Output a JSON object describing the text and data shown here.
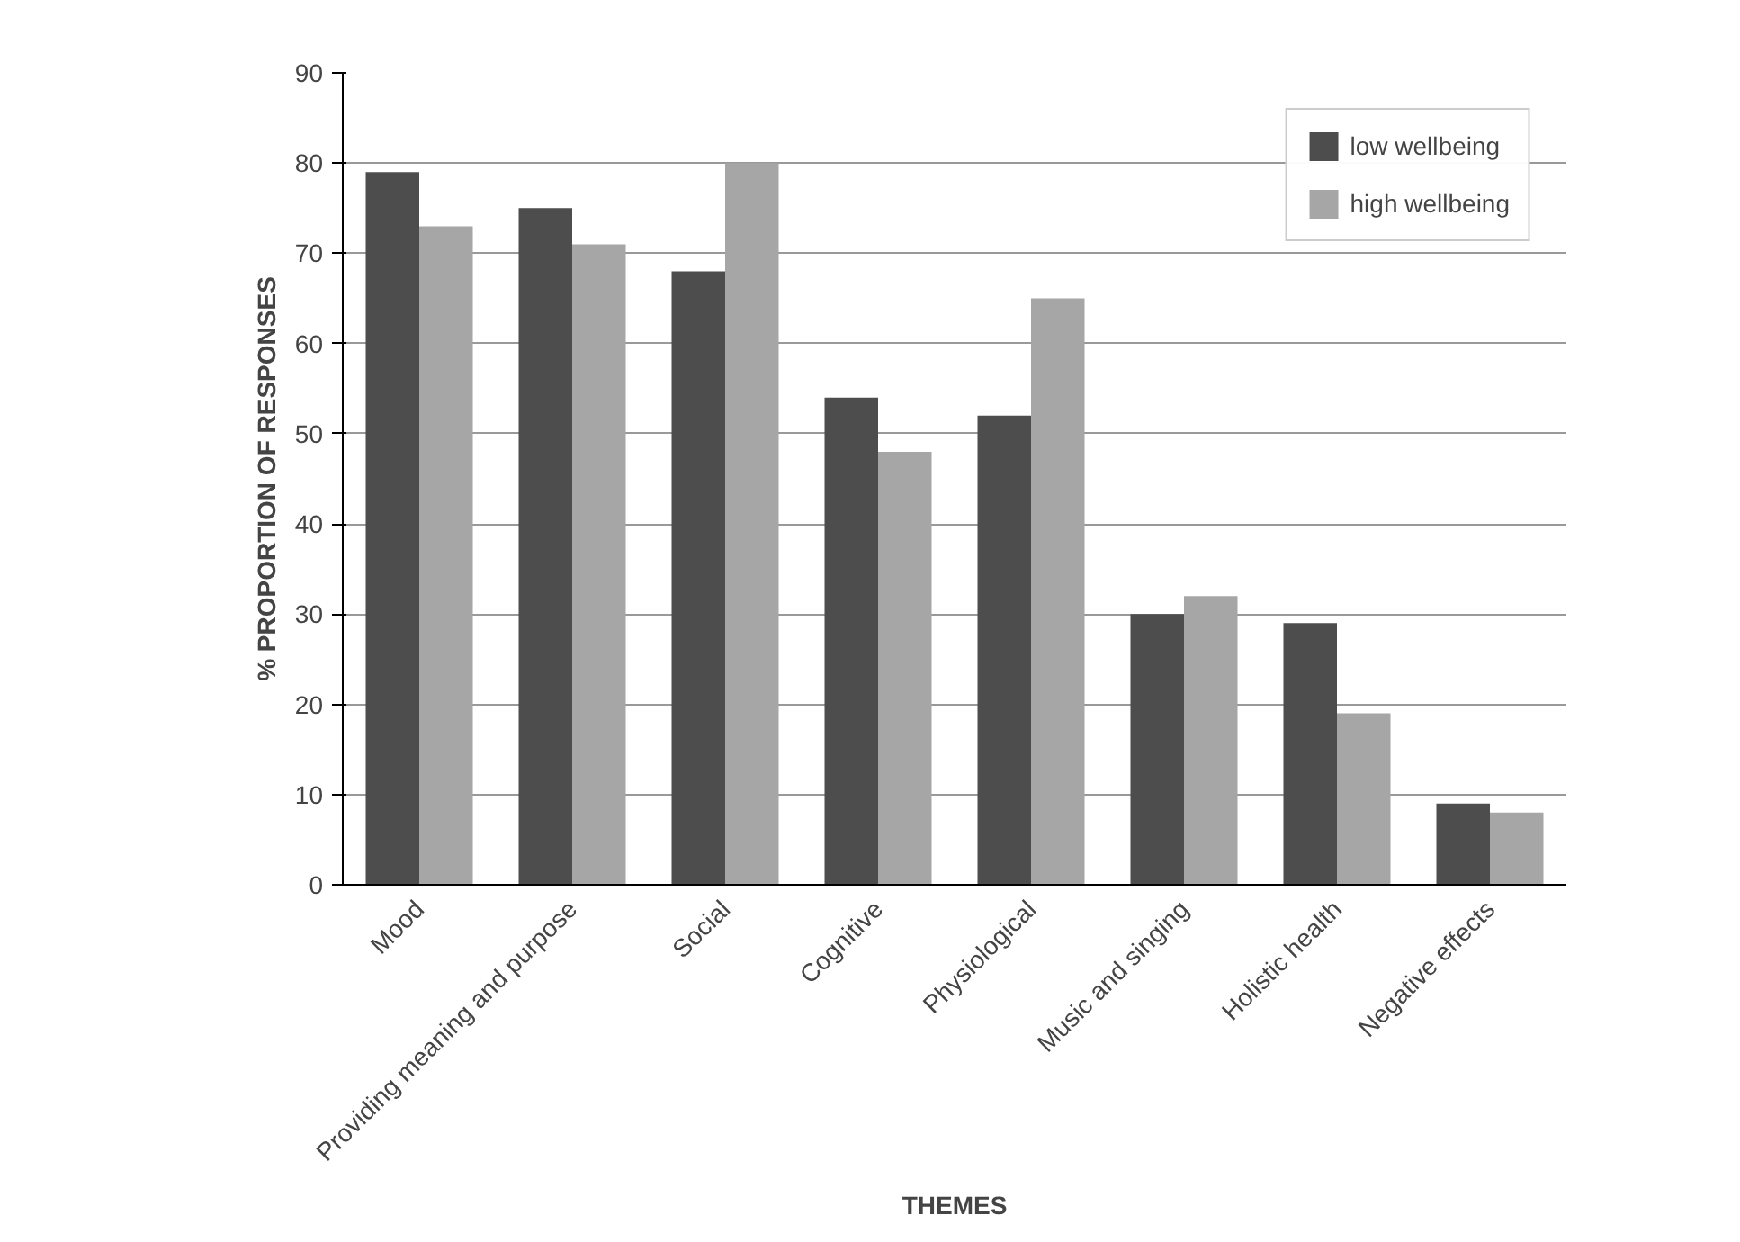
{
  "chart_data": {
    "type": "bar",
    "xlabel": "THEMES",
    "ylabel": "% PROPORTION OF RESPONSES",
    "categories": [
      "Mood",
      "Providing meaning and purpose",
      "Social",
      "Cognitive",
      "Physiological",
      "Music and singing",
      "Holistic health",
      "Negative effects"
    ],
    "series": [
      {
        "name": "low wellbeing",
        "color": "#4d4d4d",
        "values": [
          79,
          75,
          68,
          54,
          52,
          30,
          29,
          9
        ]
      },
      {
        "name": "high wellbeing",
        "color": "#a6a6a6",
        "values": [
          73,
          71,
          80,
          48,
          65,
          32,
          19,
          8
        ]
      }
    ],
    "ylim": [
      0,
      90
    ],
    "yticks": [
      0,
      10,
      20,
      30,
      40,
      50,
      60,
      70,
      80,
      90
    ],
    "grid": "y",
    "legend": "top right"
  }
}
